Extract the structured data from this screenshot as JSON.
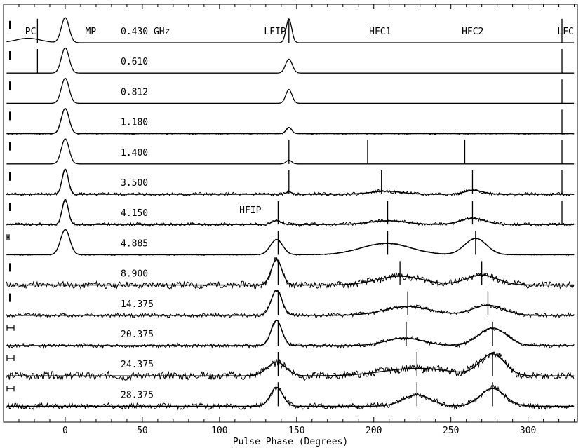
{
  "chart_data": {
    "type": "line",
    "xlabel": "Pulse Phase (Degrees)",
    "xlim": [
      -40,
      332
    ],
    "xticks": [
      0,
      50,
      100,
      150,
      200,
      250,
      300
    ],
    "component_labels": [
      {
        "text": "PC",
        "x": -26
      },
      {
        "text": "MP",
        "x": 13
      },
      {
        "text": "LFIP",
        "x": 136
      },
      {
        "text": "HFC1",
        "x": 197
      },
      {
        "text": "HFC2",
        "x": 257
      },
      {
        "text": "LFC",
        "x": 319
      },
      {
        "text": "HFIP",
        "x": 120,
        "trace": 6
      }
    ],
    "first_trace_unit": "GHz",
    "traces": [
      {
        "label": "0.430",
        "error": "bar",
        "noise": 0.0,
        "comps": [
          [
            -24,
            8,
            0.18
          ],
          [
            0,
            2.5,
            1.0
          ],
          [
            145,
            1.8,
            0.95
          ]
        ],
        "markers": [
          -18,
          145,
          322
        ]
      },
      {
        "label": "0.610",
        "error": "bar",
        "noise": 0.0,
        "comps": [
          [
            0,
            2.5,
            1.0
          ],
          [
            145,
            2.2,
            0.55
          ]
        ],
        "markers": [
          -18,
          322
        ]
      },
      {
        "label": "0.812",
        "error": "bar",
        "noise": 0.0,
        "comps": [
          [
            0,
            2.5,
            1.0
          ],
          [
            145,
            2.0,
            0.55
          ]
        ],
        "markers": [
          322
        ]
      },
      {
        "label": "1.180",
        "error": "bar",
        "noise": 0.02,
        "comps": [
          [
            0,
            2.5,
            1.0
          ],
          [
            145,
            1.8,
            0.25
          ]
        ],
        "markers": [
          322
        ]
      },
      {
        "label": "1.400",
        "error": "bar",
        "noise": 0.0,
        "comps": [
          [
            0,
            2.5,
            1.0
          ],
          [
            145,
            1.8,
            0.15
          ]
        ],
        "markers": [
          145,
          196,
          259,
          322
        ]
      },
      {
        "label": "3.500",
        "error": "bar",
        "noise": 0.06,
        "comps": [
          [
            0,
            2.0,
            1.0
          ],
          [
            145,
            1.8,
            0.1
          ],
          [
            208,
            10,
            0.12
          ],
          [
            265,
            6,
            0.15
          ]
        ],
        "markers": [
          145,
          205,
          264,
          322
        ]
      },
      {
        "label": "4.150",
        "error": "bar",
        "noise": 0.06,
        "comps": [
          [
            0,
            2.0,
            1.0
          ],
          [
            137,
            3,
            0.15
          ],
          [
            209,
            12,
            0.15
          ],
          [
            264,
            8,
            0.25
          ]
        ],
        "markers": [
          138,
          209,
          264,
          322
        ]
      },
      {
        "label": "4.885",
        "error": "bracket",
        "noise": 0.02,
        "comps": [
          [
            0,
            3.0,
            1.0
          ],
          [
            137,
            4,
            0.6
          ],
          [
            208,
            16,
            0.45
          ],
          [
            266,
            7,
            0.65
          ]
        ],
        "markers": [
          138,
          209,
          266
        ]
      },
      {
        "label": "8.900",
        "error": "bar",
        "noise": 0.12,
        "comps": [
          [
            137,
            3.5,
            1.0
          ],
          [
            217,
            15,
            0.35
          ],
          [
            270,
            10,
            0.4
          ]
        ],
        "markers": [
          138,
          217,
          270
        ]
      },
      {
        "label": "14.375",
        "error": "bar",
        "noise": 0.07,
        "comps": [
          [
            137,
            3.5,
            1.0
          ],
          [
            222,
            15,
            0.35
          ],
          [
            274,
            10,
            0.4
          ]
        ],
        "markers": [
          138,
          222,
          274
        ]
      },
      {
        "label": "20.375",
        "error": "bracket",
        "noise": 0.07,
        "comps": [
          [
            137,
            3.5,
            1.0
          ],
          [
            220,
            12,
            0.3
          ],
          [
            277,
            9,
            0.7
          ]
        ],
        "markers": [
          138,
          221,
          277
        ]
      },
      {
        "label": "24.375",
        "error": "bracket",
        "noise": 0.14,
        "comps": [
          [
            137,
            6,
            0.55
          ],
          [
            228,
            22,
            0.3
          ],
          [
            277,
            8,
            0.85
          ]
        ],
        "markers": [
          138,
          228,
          277
        ]
      },
      {
        "label": "28.375",
        "error": "bracket",
        "noise": 0.1,
        "comps": [
          [
            137,
            4,
            0.75
          ],
          [
            228,
            9,
            0.45
          ],
          [
            277,
            8,
            0.7
          ]
        ],
        "markers": [
          138,
          228,
          277
        ]
      }
    ]
  }
}
